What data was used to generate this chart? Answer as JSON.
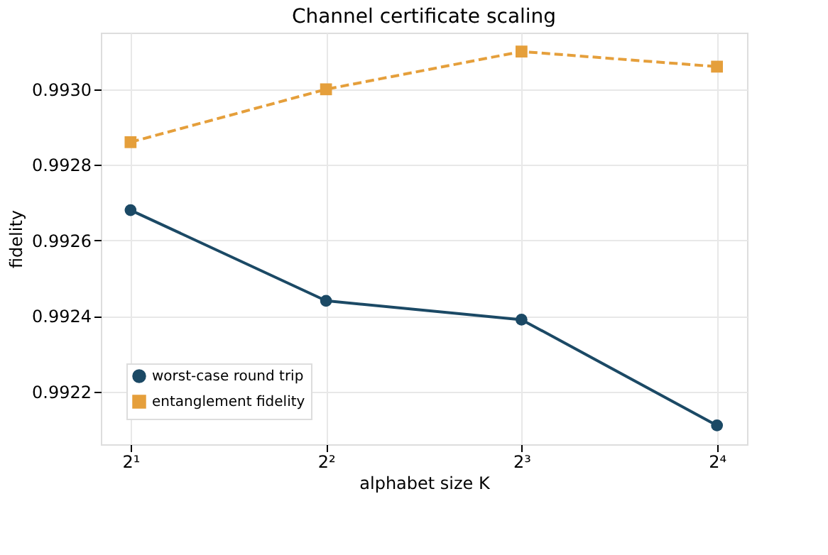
{
  "chart_data": {
    "type": "line",
    "title": "Channel certificate scaling",
    "xlabel": "alphabet size K",
    "ylabel": "fidelity",
    "x": [
      2,
      4,
      8,
      16
    ],
    "series": [
      {
        "name": "worst-case round trip",
        "color": "#1b4965",
        "marker": "circle",
        "line_style": "solid",
        "values": [
          0.99268,
          0.99244,
          0.99239,
          0.99211
        ]
      },
      {
        "name": "entanglement fidelity",
        "color": "#e59f3b",
        "marker": "square",
        "line_style": "dashed",
        "values": [
          0.99286,
          0.993,
          0.9931,
          0.99306
        ]
      }
    ],
    "log": "x",
    "xlim": [
      1.8,
      17.8
    ],
    "xticks": [
      {
        "value": 2,
        "label": "2¹"
      },
      {
        "value": 4,
        "label": "2²"
      },
      {
        "value": 8,
        "label": "2³"
      },
      {
        "value": 16,
        "label": "2⁴"
      }
    ],
    "ylim": [
      0.99206,
      0.99315
    ],
    "yticks": [
      {
        "value": 0.9922,
        "label": "0.9922"
      },
      {
        "value": 0.9924,
        "label": "0.9924"
      },
      {
        "value": 0.9926,
        "label": "0.9926"
      },
      {
        "value": 0.9928,
        "label": "0.9928"
      },
      {
        "value": 0.993,
        "label": "0.9930"
      }
    ],
    "grid": true,
    "legend": "bottom left"
  }
}
